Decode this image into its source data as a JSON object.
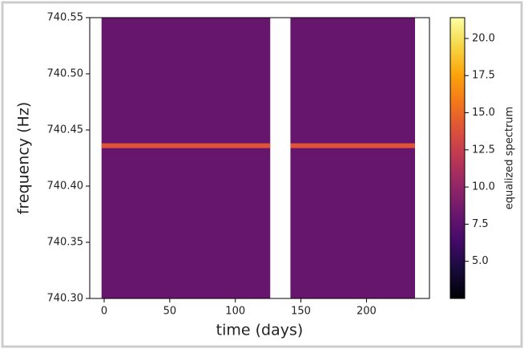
{
  "chart_data": {
    "type": "heatmap",
    "xlabel": "time (days)",
    "ylabel": "frequency (Hz)",
    "colorbar_label": "equalized spectrum",
    "colormap": "inferno",
    "xlim": [
      -11,
      248
    ],
    "ylim": [
      740.3,
      740.55
    ],
    "xticks": [
      0,
      50,
      100,
      150,
      200
    ],
    "yticks": [
      {
        "value": 740.3,
        "label": "740.30"
      },
      740.35,
      {
        "value": 740.4,
        "label": "740.40"
      },
      740.45,
      {
        "value": 740.5,
        "label": "740.50"
      },
      740.55
    ],
    "clim": [
      2.5,
      21.4
    ],
    "cticks": [
      {
        "value": 5,
        "label": "5.0"
      },
      7.5,
      {
        "value": 10,
        "label": "10.0"
      },
      12.5,
      {
        "value": 15,
        "label": "15.0"
      },
      17.5,
      {
        "value": 20,
        "label": "20.0"
      }
    ],
    "blocks": [
      {
        "x": [
          -2,
          126.6
        ],
        "y": [
          740.3,
          740.55
        ],
        "value": 8
      },
      {
        "x": [
          142,
          237
        ],
        "y": [
          740.3,
          740.55
        ],
        "value": 8
      }
    ],
    "signals": [
      {
        "x": [
          -2,
          126.6
        ],
        "y": 740.436,
        "value": 14
      },
      {
        "x": [
          142,
          237
        ],
        "y": 740.436,
        "value": 14
      }
    ]
  }
}
